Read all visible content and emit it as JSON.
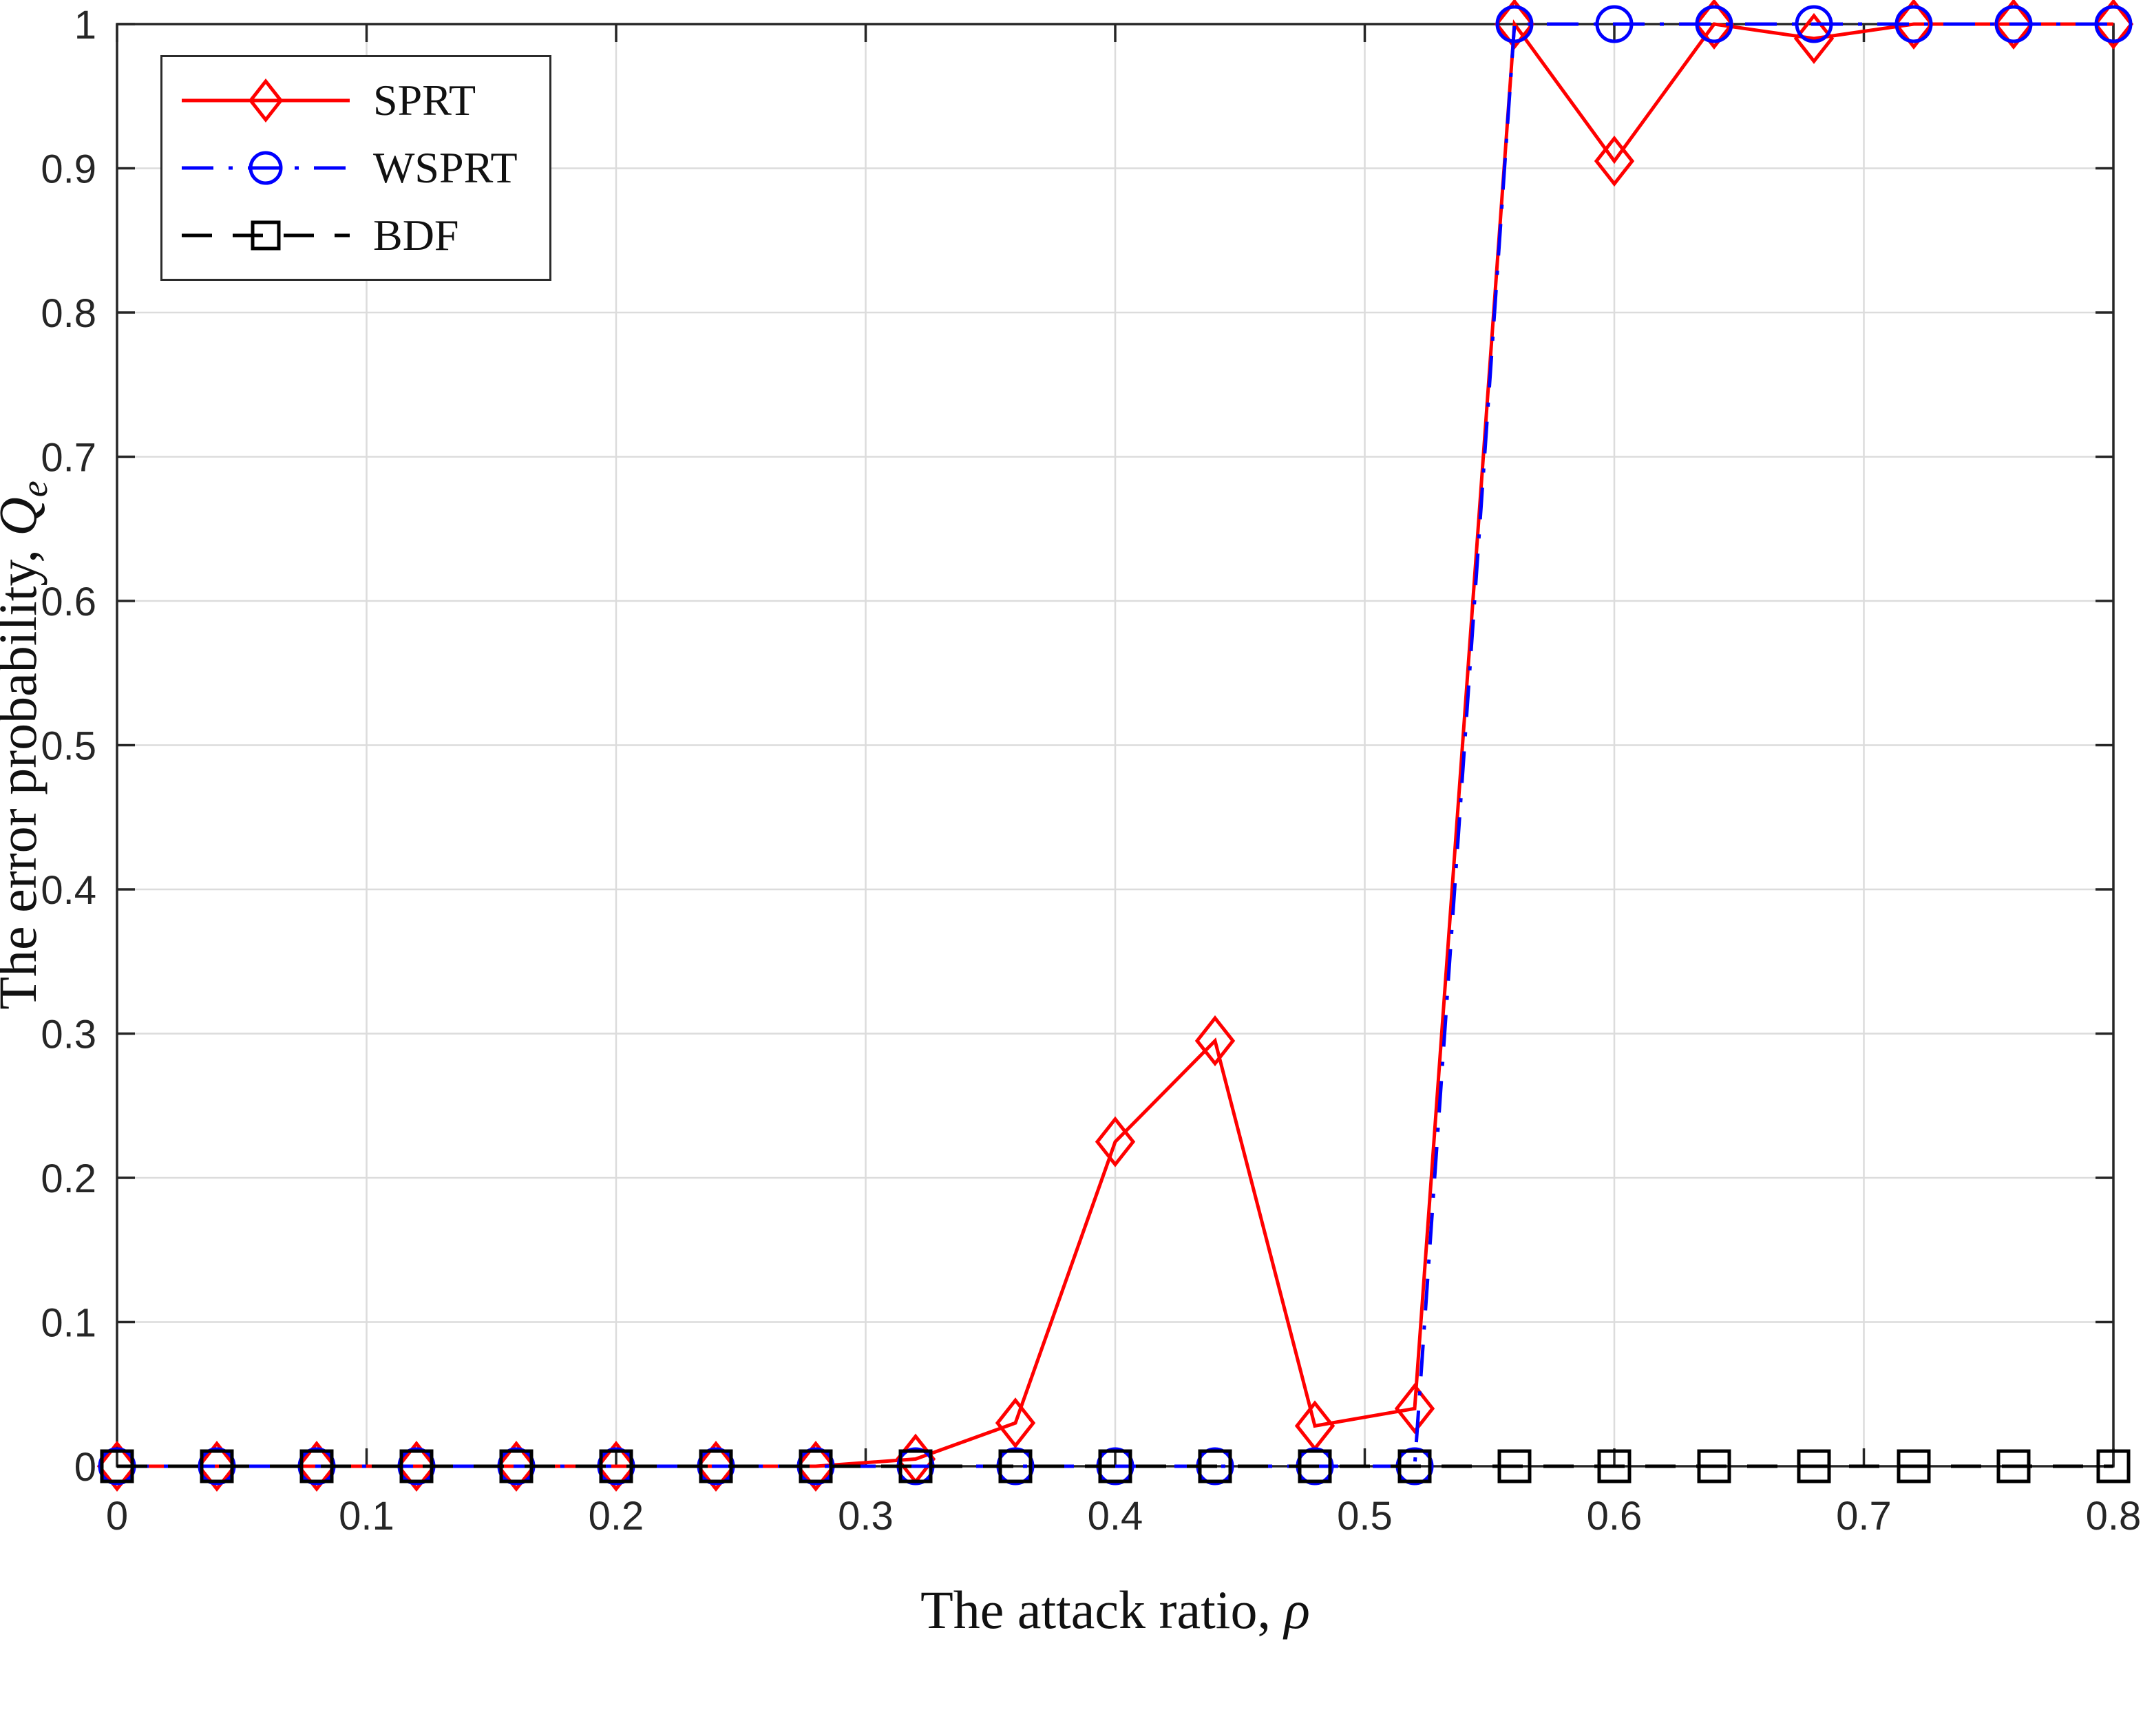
{
  "figure": {
    "background": "#ffffff",
    "box_color": "#262626",
    "grid_color": "#dcdcdc",
    "text_color": "#262626"
  },
  "chart_data": {
    "type": "line",
    "title": "",
    "xlabel": {
      "prefix": "The attack ratio, ",
      "symbol": "ρ"
    },
    "ylabel": {
      "prefix": "The error probability, ",
      "symbol": "Q",
      "subscript": "e"
    },
    "xlim": [
      0,
      0.8
    ],
    "ylim": [
      0,
      1
    ],
    "grid": true,
    "legend_position": "top-left",
    "xticks": [
      0,
      0.1,
      0.2,
      0.3,
      0.4,
      0.5,
      0.6,
      0.7,
      0.8
    ],
    "xtick_labels": [
      "0",
      "0.1",
      "0.2",
      "0.3",
      "0.4",
      "0.5",
      "0.6",
      "0.7",
      "0.8"
    ],
    "yticks": [
      0,
      0.1,
      0.2,
      0.3,
      0.4,
      0.5,
      0.6,
      0.7,
      0.8,
      0.9,
      1
    ],
    "ytick_labels": [
      "0",
      "0.1",
      "0.2",
      "0.3",
      "0.4",
      "0.5",
      "0.6",
      "0.7",
      "0.8",
      "0.9",
      "1"
    ],
    "x": [
      0,
      0.04,
      0.08,
      0.12,
      0.16,
      0.2,
      0.24,
      0.28,
      0.32,
      0.36,
      0.4,
      0.44,
      0.48,
      0.52,
      0.56,
      0.6,
      0.64,
      0.68,
      0.72,
      0.76,
      0.8
    ],
    "series": [
      {
        "name": "SPRT",
        "color": "#ff0000",
        "line_style": "solid",
        "marker": "diamond",
        "values": [
          0,
          0,
          0,
          0,
          0,
          0,
          0,
          0,
          0.005,
          0.03,
          0.225,
          0.295,
          0.028,
          0.04,
          1,
          0.905,
          1,
          0.99,
          1,
          1,
          1
        ]
      },
      {
        "name": "WSPRT",
        "color": "#0000ff",
        "line_style": "dash-dot",
        "marker": "circle",
        "values": [
          0,
          0,
          0,
          0,
          0,
          0,
          0,
          0,
          0,
          0,
          0,
          0,
          0,
          0,
          1,
          1,
          1,
          1,
          1,
          1,
          1
        ]
      },
      {
        "name": "BDF",
        "color": "#000000",
        "line_style": "dashed",
        "marker": "square",
        "values": [
          0,
          0,
          0,
          0,
          0,
          0,
          0,
          0,
          0,
          0,
          0,
          0,
          0,
          0,
          0,
          0,
          0,
          0,
          0,
          0,
          0
        ]
      }
    ]
  }
}
